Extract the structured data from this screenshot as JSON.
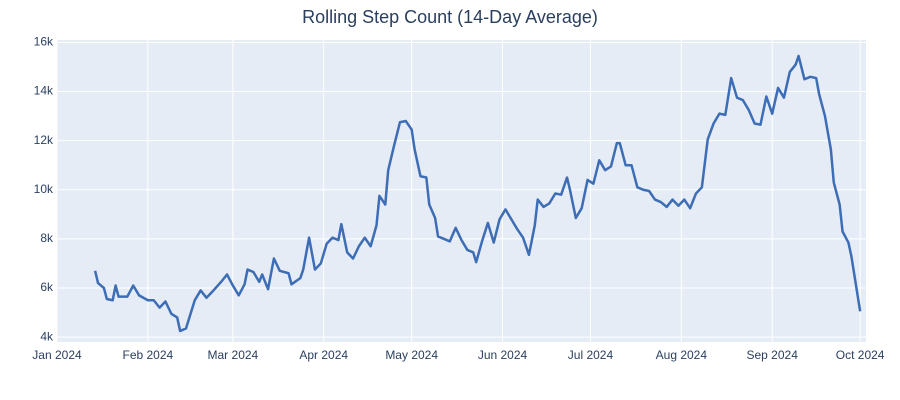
{
  "chart_data": {
    "type": "line",
    "title": "Rolling Step Count (14-Day Average)",
    "color": "#3d6db5",
    "grid": true,
    "x": [
      "2024-01-14",
      "2024-01-15",
      "2024-01-17",
      "2024-01-18",
      "2024-01-20",
      "2024-01-21",
      "2024-01-22",
      "2024-01-25",
      "2024-01-27",
      "2024-01-29",
      "2024-02-01",
      "2024-02-03",
      "2024-02-05",
      "2024-02-07",
      "2024-02-09",
      "2024-02-11",
      "2024-02-12",
      "2024-02-14",
      "2024-02-17",
      "2024-02-19",
      "2024-02-21",
      "2024-02-23",
      "2024-02-26",
      "2024-02-28",
      "2024-03-01",
      "2024-03-03",
      "2024-03-05",
      "2024-03-06",
      "2024-03-08",
      "2024-03-10",
      "2024-03-11",
      "2024-03-13",
      "2024-03-15",
      "2024-03-17",
      "2024-03-20",
      "2024-03-21",
      "2024-03-24",
      "2024-03-25",
      "2024-03-27",
      "2024-03-29",
      "2024-03-31",
      "2024-04-02",
      "2024-04-04",
      "2024-04-06",
      "2024-04-07",
      "2024-04-09",
      "2024-04-11",
      "2024-04-13",
      "2024-04-15",
      "2024-04-17",
      "2024-04-19",
      "2024-04-20",
      "2024-04-22",
      "2024-04-23",
      "2024-04-25",
      "2024-04-27",
      "2024-04-29",
      "2024-05-01",
      "2024-05-02",
      "2024-05-04",
      "2024-05-06",
      "2024-05-07",
      "2024-05-09",
      "2024-05-10",
      "2024-05-14",
      "2024-05-16",
      "2024-05-18",
      "2024-05-20",
      "2024-05-22",
      "2024-05-23",
      "2024-05-25",
      "2024-05-27",
      "2024-05-29",
      "2024-05-31",
      "2024-06-02",
      "2024-06-04",
      "2024-06-06",
      "2024-06-08",
      "2024-06-10",
      "2024-06-12",
      "2024-06-13",
      "2024-06-15",
      "2024-06-17",
      "2024-06-19",
      "2024-06-21",
      "2024-06-23",
      "2024-06-24",
      "2024-06-26",
      "2024-06-28",
      "2024-06-30",
      "2024-07-02",
      "2024-07-04",
      "2024-07-06",
      "2024-07-08",
      "2024-07-10",
      "2024-07-11",
      "2024-07-13",
      "2024-07-15",
      "2024-07-17",
      "2024-07-19",
      "2024-07-21",
      "2024-07-23",
      "2024-07-25",
      "2024-07-27",
      "2024-07-29",
      "2024-07-31",
      "2024-08-02",
      "2024-08-04",
      "2024-08-06",
      "2024-08-08",
      "2024-08-10",
      "2024-08-12",
      "2024-08-14",
      "2024-08-16",
      "2024-08-18",
      "2024-08-20",
      "2024-08-22",
      "2024-08-24",
      "2024-08-26",
      "2024-08-28",
      "2024-08-30",
      "2024-09-01",
      "2024-09-03",
      "2024-09-05",
      "2024-09-07",
      "2024-09-09",
      "2024-09-10",
      "2024-09-12",
      "2024-09-14",
      "2024-09-16",
      "2024-09-17",
      "2024-09-19",
      "2024-09-21",
      "2024-09-22",
      "2024-09-24",
      "2024-09-25",
      "2024-09-27",
      "2024-09-28",
      "2024-10-01"
    ],
    "values": [
      6700,
      6200,
      6000,
      5550,
      5500,
      6100,
      5650,
      5650,
      6100,
      5700,
      5500,
      5500,
      5200,
      5450,
      4950,
      4800,
      4250,
      4350,
      5500,
      5900,
      5600,
      5850,
      6250,
      6550,
      6100,
      5700,
      6150,
      6750,
      6650,
      6250,
      6550,
      5950,
      7200,
      6700,
      6600,
      6150,
      6400,
      6750,
      8050,
      6750,
      7000,
      7800,
      8050,
      7950,
      8600,
      7450,
      7200,
      7700,
      8050,
      7700,
      8550,
      9750,
      9400,
      10800,
      11800,
      12750,
      12800,
      12450,
      11650,
      10550,
      10500,
      9400,
      8850,
      8100,
      7900,
      8450,
      7950,
      7550,
      7450,
      7050,
      7900,
      8650,
      7850,
      8800,
      9200,
      8800,
      8400,
      8050,
      7350,
      8550,
      9600,
      9300,
      9450,
      9850,
      9800,
      10500,
      10000,
      8850,
      9250,
      10400,
      10250,
      11200,
      10800,
      10950,
      11900,
      11900,
      11000,
      11000,
      10100,
      10000,
      9950,
      9600,
      9500,
      9300,
      9600,
      9350,
      9600,
      9250,
      9850,
      10100,
      12050,
      12700,
      13100,
      13050,
      14550,
      13750,
      13650,
      13250,
      12700,
      12650,
      13800,
      13100,
      14150,
      13750,
      14800,
      15100,
      15450,
      14500,
      14600,
      14550,
      13900,
      13000,
      11650,
      10300,
      9400,
      8300,
      7850,
      7300,
      5050
    ],
    "xlim": [
      "2024-01-01",
      "2024-10-03"
    ],
    "xticks": [
      {
        "value": "2024-01-01",
        "label": "Jan 2024"
      },
      {
        "value": "2024-02-01",
        "label": "Feb 2024"
      },
      {
        "value": "2024-03-01",
        "label": "Mar 2024"
      },
      {
        "value": "2024-04-01",
        "label": "Apr 2024"
      },
      {
        "value": "2024-05-01",
        "label": "May 2024"
      },
      {
        "value": "2024-06-01",
        "label": "Jun 2024"
      },
      {
        "value": "2024-07-01",
        "label": "Jul 2024"
      },
      {
        "value": "2024-08-01",
        "label": "Aug 2024"
      },
      {
        "value": "2024-09-01",
        "label": "Sep 2024"
      },
      {
        "value": "2024-10-01",
        "label": "Oct 2024"
      }
    ],
    "ylim": [
      3800,
      16100
    ],
    "yticks": [
      {
        "value": 4000,
        "label": "4k"
      },
      {
        "value": 6000,
        "label": "6k"
      },
      {
        "value": 8000,
        "label": "8k"
      },
      {
        "value": 10000,
        "label": "10k"
      },
      {
        "value": 12000,
        "label": "12k"
      },
      {
        "value": 14000,
        "label": "14k"
      },
      {
        "value": 16000,
        "label": "16k"
      }
    ]
  }
}
